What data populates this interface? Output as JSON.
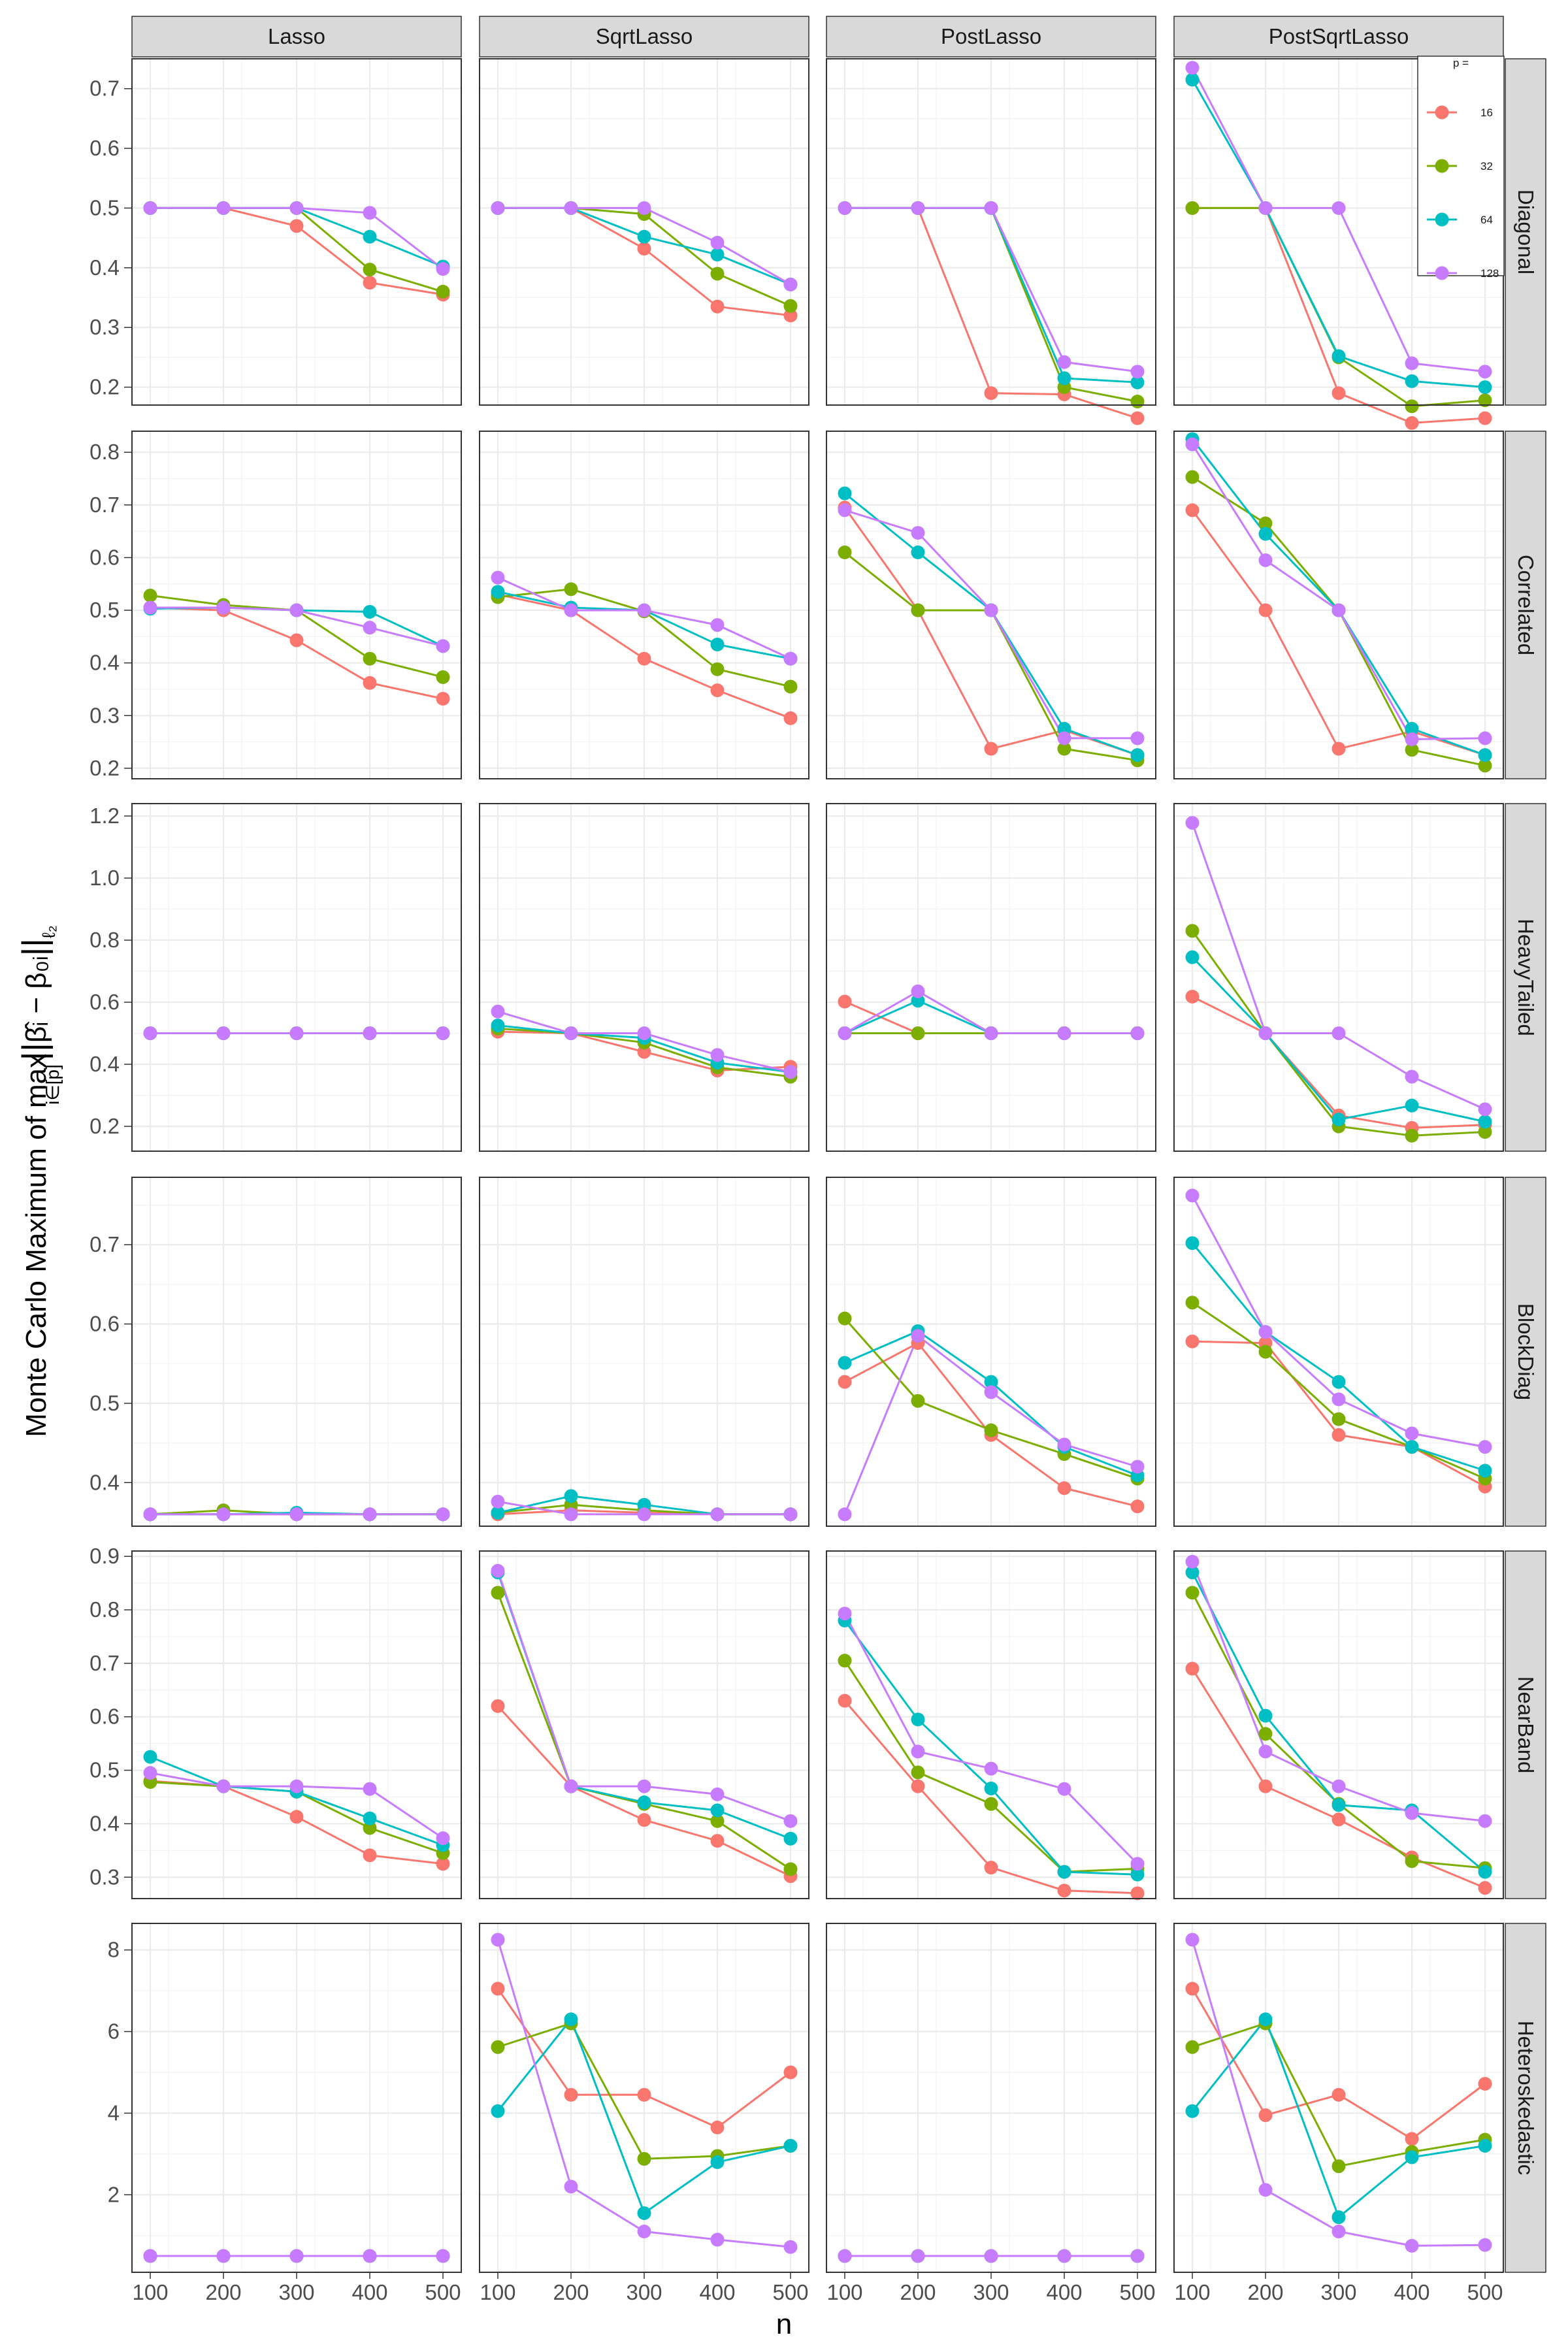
{
  "chart_data": {
    "type": "line",
    "title": "",
    "xlabel": "n",
    "ylabel": {
      "prefix": "Monte Carlo Maximum of ",
      "max_word": "max",
      "subscript": "i∈[p]",
      "norm_body": "β̂ᵢ − β₀ᵢ",
      "norm_sub": "ℓ₂"
    },
    "x": [
      100,
      200,
      300,
      400,
      500
    ],
    "x_ticks": [
      "100",
      "200",
      "300",
      "400",
      "500"
    ],
    "methods": [
      "Lasso",
      "SqrtLasso",
      "PostLasso",
      "PostSqrtLasso"
    ],
    "legend": {
      "title": "p =",
      "placement": "top-right (inside PostSqrtLasso / Diagonal panel)",
      "entries": [
        {
          "label": "16",
          "color": "#F8766D"
        },
        {
          "label": "32",
          "color": "#7CAE00"
        },
        {
          "label": "64",
          "color": "#00BFC4"
        },
        {
          "label": "128",
          "color": "#C77CFF"
        }
      ]
    },
    "grid": true,
    "rows": [
      {
        "name": "Diagonal",
        "ylim": [
          0.17,
          0.75
        ],
        "yticks": [
          0.2,
          0.3,
          0.4,
          0.5,
          0.6,
          0.7
        ],
        "yticklabels": [
          "0.2",
          "0.3",
          "0.4",
          "0.5",
          "0.6",
          "0.7"
        ],
        "panels": [
          [
            [
              0.5,
              0.5,
              0.47,
              0.375,
              0.355
            ],
            [
              0.5,
              0.5,
              0.5,
              0.397,
              0.36
            ],
            [
              0.5,
              0.5,
              0.5,
              0.452,
              0.402
            ],
            [
              0.5,
              0.5,
              0.5,
              0.492,
              0.398
            ]
          ],
          [
            [
              0.5,
              0.5,
              0.432,
              0.335,
              0.32
            ],
            [
              0.5,
              0.5,
              0.49,
              0.39,
              0.336
            ],
            [
              0.5,
              0.5,
              0.452,
              0.422,
              0.372
            ],
            [
              0.5,
              0.5,
              0.5,
              0.442,
              0.372
            ]
          ],
          [
            [
              0.5,
              0.5,
              0.19,
              0.188,
              0.148
            ],
            [
              0.5,
              0.5,
              0.5,
              0.2,
              0.176
            ],
            [
              0.5,
              0.5,
              0.5,
              0.215,
              0.208
            ],
            [
              0.5,
              0.5,
              0.5,
              0.242,
              0.226
            ]
          ],
          [
            [
              0.5,
              0.5,
              0.19,
              0.14,
              0.148
            ],
            [
              0.5,
              0.5,
              0.25,
              0.168,
              0.178
            ],
            [
              0.715,
              0.5,
              0.252,
              0.21,
              0.2
            ],
            [
              0.735,
              0.5,
              0.5,
              0.24,
              0.226
            ]
          ]
        ]
      },
      {
        "name": "Correlated",
        "ylim": [
          0.18,
          0.84
        ],
        "yticks": [
          0.2,
          0.3,
          0.4,
          0.5,
          0.6,
          0.7,
          0.8
        ],
        "yticklabels": [
          "0.2",
          "0.3",
          "0.4",
          "0.5",
          "0.6",
          "0.7",
          "0.8"
        ],
        "panels": [
          [
            [
              0.505,
              0.5,
              0.443,
              0.362,
              0.332
            ],
            [
              0.528,
              0.51,
              0.5,
              0.408,
              0.373
            ],
            [
              0.503,
              0.505,
              0.5,
              0.497,
              0.432
            ],
            [
              0.505,
              0.505,
              0.5,
              0.467,
              0.432
            ]
          ],
          [
            [
              0.53,
              0.5,
              0.408,
              0.348,
              0.295
            ],
            [
              0.525,
              0.54,
              0.498,
              0.388,
              0.355
            ],
            [
              0.535,
              0.505,
              0.5,
              0.435,
              0.408
            ],
            [
              0.562,
              0.5,
              0.5,
              0.472,
              0.408
            ]
          ],
          [
            [
              0.695,
              0.5,
              0.237,
              0.272,
              0.225
            ],
            [
              0.61,
              0.5,
              0.5,
              0.237,
              0.215
            ],
            [
              0.722,
              0.61,
              0.5,
              0.275,
              0.225
            ],
            [
              0.69,
              0.647,
              0.5,
              0.257,
              0.257
            ]
          ],
          [
            [
              0.69,
              0.5,
              0.237,
              0.27,
              0.225
            ],
            [
              0.753,
              0.665,
              0.5,
              0.235,
              0.205
            ],
            [
              0.825,
              0.645,
              0.5,
              0.275,
              0.225
            ],
            [
              0.815,
              0.595,
              0.5,
              0.255,
              0.257
            ]
          ]
        ]
      },
      {
        "name": "HeavyTailed",
        "ylim": [
          0.12,
          1.24
        ],
        "yticks": [
          0.2,
          0.4,
          0.6,
          0.8,
          1.0,
          1.2
        ],
        "yticklabels": [
          "0.2",
          "0.4",
          "0.6",
          "0.8",
          "1.0",
          "1.2"
        ],
        "panels": [
          [
            [
              0.5,
              0.5,
              0.5,
              0.5,
              0.5
            ],
            [
              0.5,
              0.5,
              0.5,
              0.5,
              0.5
            ],
            [
              0.5,
              0.5,
              0.5,
              0.5,
              0.5
            ],
            [
              0.5,
              0.5,
              0.5,
              0.5,
              0.5
            ]
          ],
          [
            [
              0.505,
              0.5,
              0.44,
              0.38,
              0.392
            ],
            [
              0.515,
              0.5,
              0.47,
              0.39,
              0.36
            ],
            [
              0.525,
              0.5,
              0.485,
              0.405,
              0.375
            ],
            [
              0.57,
              0.5,
              0.5,
              0.43,
              0.375
            ]
          ],
          [
            [
              0.602,
              0.5,
              0.5,
              0.5,
              0.5
            ],
            [
              0.5,
              0.5,
              0.5,
              0.5,
              0.5
            ],
            [
              0.5,
              0.605,
              0.5,
              0.5,
              0.5
            ],
            [
              0.5,
              0.635,
              0.5,
              0.5,
              0.5
            ]
          ],
          [
            [
              0.618,
              0.5,
              0.235,
              0.195,
              0.205
            ],
            [
              0.83,
              0.5,
              0.2,
              0.17,
              0.182
            ],
            [
              0.745,
              0.5,
              0.222,
              0.267,
              0.215
            ],
            [
              1.178,
              0.5,
              0.5,
              0.36,
              0.255
            ]
          ]
        ]
      },
      {
        "name": "BlockDiag",
        "ylim": [
          0.345,
          0.785
        ],
        "yticks": [
          0.4,
          0.5,
          0.6,
          0.7
        ],
        "yticklabels": [
          "0.4",
          "0.5",
          "0.6",
          "0.7"
        ],
        "panels": [
          [
            [
              0.36,
              0.36,
              0.36,
              0.36,
              0.36
            ],
            [
              0.36,
              0.365,
              0.36,
              0.36,
              0.36
            ],
            [
              0.36,
              0.36,
              0.362,
              0.36,
              0.36
            ],
            [
              0.36,
              0.36,
              0.36,
              0.36,
              0.36
            ]
          ],
          [
            [
              0.36,
              0.365,
              0.362,
              0.36,
              0.36
            ],
            [
              0.362,
              0.372,
              0.365,
              0.36,
              0.36
            ],
            [
              0.362,
              0.383,
              0.372,
              0.36,
              0.36
            ],
            [
              0.376,
              0.36,
              0.36,
              0.36,
              0.36
            ]
          ],
          [
            [
              0.527,
              0.576,
              0.46,
              0.393,
              0.37
            ],
            [
              0.607,
              0.503,
              0.466,
              0.436,
              0.405
            ],
            [
              0.551,
              0.591,
              0.527,
              0.445,
              0.409
            ],
            [
              0.36,
              0.585,
              0.514,
              0.448,
              0.42
            ]
          ],
          [
            [
              0.578,
              0.576,
              0.46,
              0.445,
              0.395
            ],
            [
              0.627,
              0.565,
              0.48,
              0.445,
              0.405
            ],
            [
              0.702,
              0.59,
              0.527,
              0.445,
              0.415
            ],
            [
              0.762,
              0.59,
              0.505,
              0.462,
              0.445
            ]
          ]
        ]
      },
      {
        "name": "NearBand",
        "ylim": [
          0.26,
          0.91
        ],
        "yticks": [
          0.3,
          0.4,
          0.5,
          0.6,
          0.7,
          0.8,
          0.9
        ],
        "yticklabels": [
          "0.3",
          "0.4",
          "0.5",
          "0.6",
          "0.7",
          "0.8",
          "0.9"
        ],
        "panels": [
          [
            [
              0.48,
              0.47,
              0.413,
              0.341,
              0.325
            ],
            [
              0.478,
              0.47,
              0.46,
              0.392,
              0.345
            ],
            [
              0.525,
              0.47,
              0.46,
              0.41,
              0.36
            ],
            [
              0.495,
              0.47,
              0.47,
              0.465,
              0.373
            ]
          ],
          [
            [
              0.62,
              0.47,
              0.407,
              0.368,
              0.302
            ],
            [
              0.832,
              0.47,
              0.437,
              0.405,
              0.315
            ],
            [
              0.87,
              0.47,
              0.44,
              0.425,
              0.372
            ],
            [
              0.873,
              0.47,
              0.47,
              0.455,
              0.405
            ]
          ],
          [
            [
              0.63,
              0.47,
              0.318,
              0.275,
              0.27
            ],
            [
              0.705,
              0.496,
              0.437,
              0.31,
              0.316
            ],
            [
              0.78,
              0.595,
              0.466,
              0.31,
              0.305
            ],
            [
              0.793,
              0.535,
              0.503,
              0.465,
              0.325
            ]
          ],
          [
            [
              0.69,
              0.47,
              0.408,
              0.337,
              0.28
            ],
            [
              0.832,
              0.568,
              0.437,
              0.33,
              0.317
            ],
            [
              0.87,
              0.602,
              0.435,
              0.425,
              0.31
            ],
            [
              0.89,
              0.535,
              0.47,
              0.42,
              0.405
            ]
          ]
        ]
      },
      {
        "name": "Heteroskedastic",
        "ylim": [
          0.1,
          8.65
        ],
        "yticks": [
          2,
          4,
          6,
          8
        ],
        "yticklabels": [
          "2",
          "4",
          "6",
          "8"
        ],
        "panels": [
          [
            [
              0.5,
              0.5,
              0.5,
              0.5,
              0.5
            ],
            [
              0.5,
              0.5,
              0.5,
              0.5,
              0.5
            ],
            [
              0.5,
              0.5,
              0.5,
              0.5,
              0.5
            ],
            [
              0.5,
              0.5,
              0.5,
              0.5,
              0.5
            ]
          ],
          [
            [
              7.05,
              4.45,
              4.45,
              3.65,
              5.0
            ],
            [
              5.62,
              6.2,
              2.88,
              2.95,
              3.2
            ],
            [
              4.05,
              6.3,
              1.55,
              2.8,
              3.2
            ],
            [
              8.25,
              2.2,
              1.1,
              0.9,
              0.72
            ]
          ],
          [
            [
              0.5,
              0.5,
              0.5,
              0.5,
              0.5
            ],
            [
              0.5,
              0.5,
              0.5,
              0.5,
              0.5
            ],
            [
              0.5,
              0.5,
              0.5,
              0.5,
              0.5
            ],
            [
              0.5,
              0.5,
              0.5,
              0.5,
              0.5
            ]
          ],
          [
            [
              7.05,
              3.95,
              4.45,
              3.37,
              4.72
            ],
            [
              5.62,
              6.2,
              2.7,
              3.05,
              3.35
            ],
            [
              4.05,
              6.3,
              1.45,
              2.92,
              3.2
            ],
            [
              8.25,
              2.12,
              1.1,
              0.75,
              0.77
            ]
          ]
        ]
      }
    ]
  }
}
